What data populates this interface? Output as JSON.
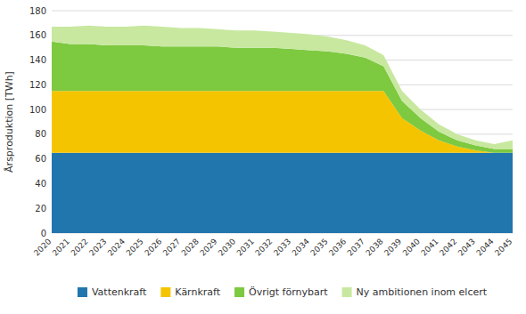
{
  "chart_data": {
    "type": "area",
    "stacked": true,
    "ylabel": "Årsproduktion [TWh]",
    "x": [
      2020,
      2021,
      2022,
      2023,
      2024,
      2025,
      2026,
      2027,
      2028,
      2029,
      2030,
      2031,
      2032,
      2033,
      2034,
      2035,
      2036,
      2037,
      2038,
      2039,
      2040,
      2041,
      2042,
      2043,
      2044,
      2045
    ],
    "xlim": [
      2020,
      2045
    ],
    "xticks": [
      2020,
      2021,
      2022,
      2023,
      2024,
      2025,
      2026,
      2027,
      2028,
      2029,
      2030,
      2031,
      2032,
      2033,
      2034,
      2035,
      2036,
      2037,
      2038,
      2039,
      2040,
      2041,
      2042,
      2043,
      2044,
      2045
    ],
    "ylim": [
      0,
      180
    ],
    "yticks": [
      0,
      20,
      40,
      60,
      80,
      100,
      120,
      140,
      160,
      180
    ],
    "grid": true,
    "legend": "bottom",
    "series": [
      {
        "name": "Vattenkraft",
        "color": "#2176AE",
        "values": [
          65,
          65,
          65,
          65,
          65,
          65,
          65,
          65,
          65,
          65,
          65,
          65,
          65,
          65,
          65,
          65,
          65,
          65,
          65,
          65,
          65,
          65,
          65,
          65,
          65,
          65
        ]
      },
      {
        "name": "Kärnkraft",
        "color": "#F5C400",
        "values": [
          50,
          50,
          50,
          50,
          50,
          50,
          50,
          50,
          50,
          50,
          50,
          50,
          50,
          50,
          50,
          50,
          50,
          50,
          50,
          28,
          18,
          10,
          5,
          2,
          0,
          0
        ]
      },
      {
        "name": "Övrigt förnybart",
        "color": "#7DC940",
        "values": [
          40,
          38,
          38,
          37,
          37,
          37,
          36,
          36,
          36,
          36,
          35,
          35,
          35,
          34,
          33,
          32,
          30,
          27,
          20,
          14,
          10,
          7,
          5,
          4,
          3,
          3
        ]
      },
      {
        "name": "Ny ambitionen inom elcert",
        "color": "#C8E8A0",
        "values": [
          12,
          14,
          15,
          15,
          15,
          16,
          16,
          15,
          15,
          14,
          14,
          14,
          13,
          13,
          13,
          12,
          11,
          10,
          9,
          8,
          7,
          6,
          5,
          4,
          4,
          7
        ]
      }
    ]
  }
}
